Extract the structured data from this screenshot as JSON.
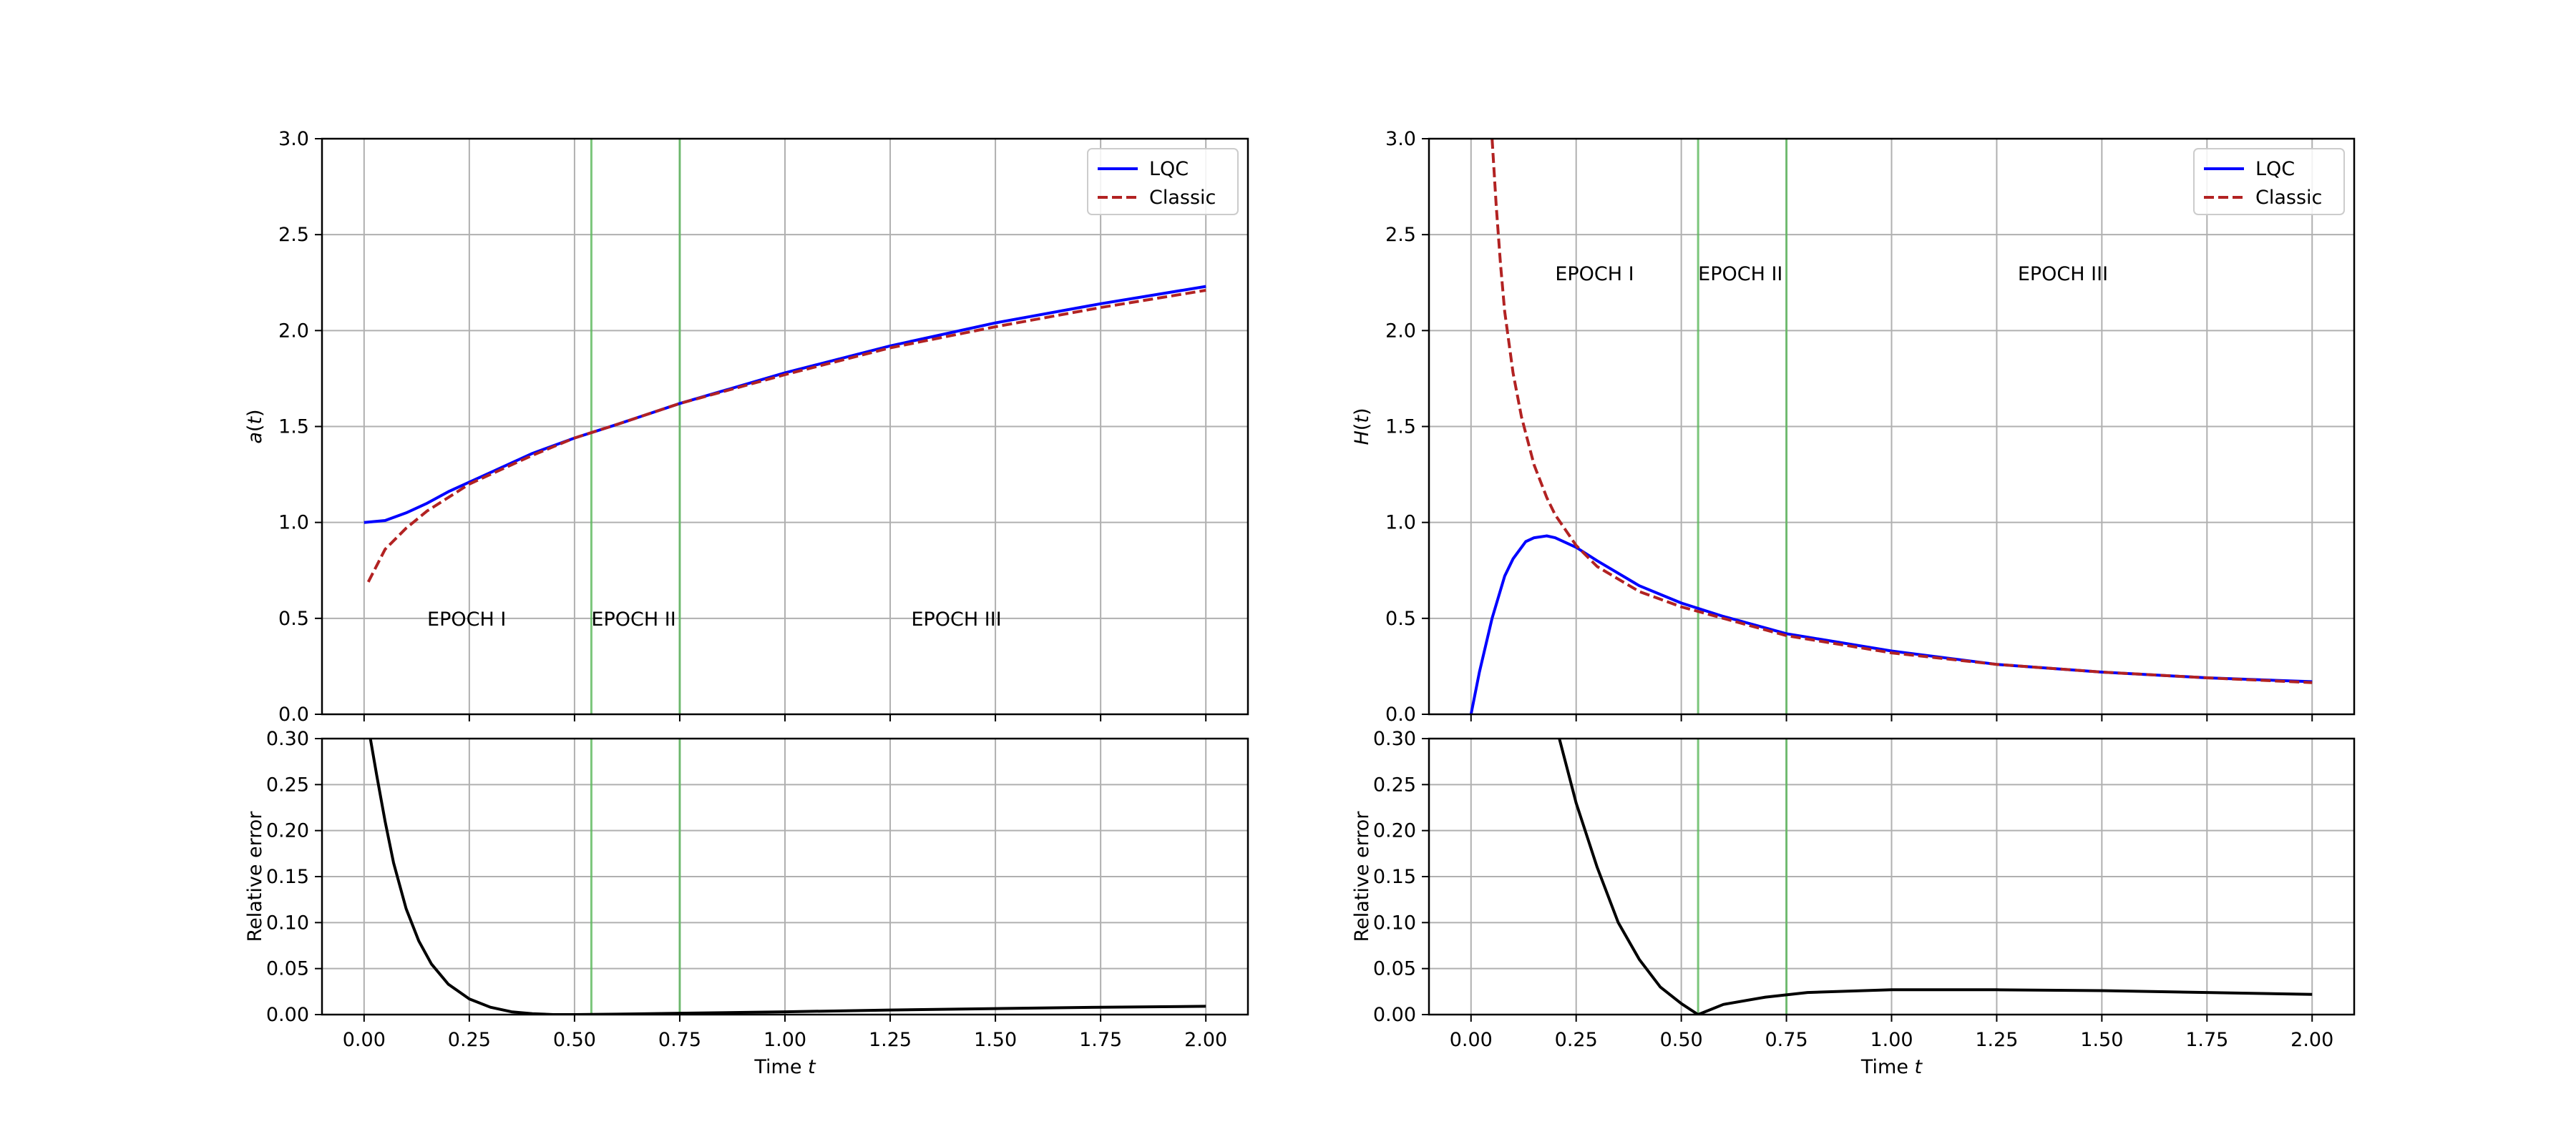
{
  "chart_data": [
    {
      "type": "line",
      "panel": "top-left",
      "ylabel_html": "<tspan font-style='italic'>a</tspan>(<tspan font-style='italic'>t</tspan>)",
      "ylabel": "a(t)",
      "xlim": [
        -0.1,
        2.1
      ],
      "ylim": [
        0,
        3.0
      ],
      "yticks": [
        "0.0",
        "0.5",
        "1.0",
        "1.5",
        "2.0",
        "2.5",
        "3.0"
      ],
      "grid": true,
      "legend": "top-right",
      "vlines": [
        0.54,
        0.75
      ],
      "annotations": [
        {
          "text": "EPOCH I",
          "x": 0.15,
          "y": 0.5
        },
        {
          "text": "EPOCH II",
          "x": 0.54,
          "y": 0.5
        },
        {
          "text": "EPOCH III",
          "x": 1.3,
          "y": 0.5
        }
      ],
      "series": [
        {
          "name": "LQC",
          "style": "solid",
          "color": "#0000ff",
          "x": [
            0,
            0.05,
            0.1,
            0.15,
            0.2,
            0.25,
            0.3,
            0.4,
            0.5,
            0.6,
            0.75,
            1.0,
            1.25,
            1.5,
            1.75,
            2.0
          ],
          "y": [
            1.0,
            1.01,
            1.05,
            1.1,
            1.16,
            1.21,
            1.26,
            1.36,
            1.44,
            1.51,
            1.62,
            1.78,
            1.92,
            2.04,
            2.14,
            2.23
          ]
        },
        {
          "name": "Classic",
          "style": "dashed",
          "color": "#b22222",
          "x": [
            0.01,
            0.05,
            0.1,
            0.15,
            0.2,
            0.25,
            0.3,
            0.4,
            0.5,
            0.6,
            0.75,
            1.0,
            1.25,
            1.5,
            1.75,
            2.0
          ],
          "y": [
            0.69,
            0.86,
            0.97,
            1.06,
            1.13,
            1.2,
            1.25,
            1.35,
            1.44,
            1.51,
            1.62,
            1.77,
            1.91,
            2.02,
            2.12,
            2.21
          ]
        }
      ]
    },
    {
      "type": "line",
      "panel": "top-right",
      "ylabel_html": "<tspan font-style='italic'>H</tspan>(<tspan font-style='italic'>t</tspan>)",
      "ylabel": "H(t)",
      "xlim": [
        -0.1,
        2.1
      ],
      "ylim": [
        0,
        3.0
      ],
      "yticks": [
        "0.0",
        "0.5",
        "1.0",
        "1.5",
        "2.0",
        "2.5",
        "3.0"
      ],
      "grid": true,
      "legend": "top-right",
      "vlines": [
        0.54,
        0.75
      ],
      "annotations": [
        {
          "text": "EPOCH I",
          "x": 0.2,
          "y": 2.3
        },
        {
          "text": "EPOCH II",
          "x": 0.54,
          "y": 2.3
        },
        {
          "text": "EPOCH III",
          "x": 1.3,
          "y": 2.3
        }
      ],
      "series": [
        {
          "name": "LQC",
          "style": "solid",
          "color": "#0000ff",
          "x": [
            0,
            0.02,
            0.05,
            0.08,
            0.1,
            0.13,
            0.15,
            0.18,
            0.2,
            0.25,
            0.3,
            0.4,
            0.5,
            0.6,
            0.75,
            1.0,
            1.25,
            1.5,
            1.75,
            2.0
          ],
          "y": [
            0,
            0.22,
            0.5,
            0.72,
            0.81,
            0.9,
            0.92,
            0.93,
            0.92,
            0.87,
            0.8,
            0.67,
            0.58,
            0.51,
            0.42,
            0.33,
            0.26,
            0.22,
            0.19,
            0.17
          ]
        },
        {
          "name": "Classic",
          "style": "dashed",
          "color": "#b22222",
          "x": [
            0.05,
            0.06,
            0.07,
            0.08,
            0.1,
            0.12,
            0.15,
            0.18,
            0.2,
            0.25,
            0.3,
            0.4,
            0.5,
            0.6,
            0.75,
            1.0,
            1.25,
            1.5,
            1.75,
            2.0
          ],
          "y": [
            3.0,
            2.65,
            2.35,
            2.1,
            1.78,
            1.55,
            1.3,
            1.13,
            1.04,
            0.88,
            0.77,
            0.64,
            0.56,
            0.5,
            0.41,
            0.32,
            0.26,
            0.22,
            0.19,
            0.165
          ]
        }
      ]
    },
    {
      "type": "line",
      "panel": "bottom-left",
      "ylabel": "Relative error",
      "xlabel_html": "Time <tspan font-style='italic'>t</tspan>",
      "xlabel": "Time t",
      "xlim": [
        -0.1,
        2.1
      ],
      "ylim": [
        0,
        0.3
      ],
      "xticks": [
        "0.00",
        "0.25",
        "0.50",
        "0.75",
        "1.00",
        "1.25",
        "1.50",
        "1.75",
        "2.00"
      ],
      "yticks": [
        "0.00",
        "0.05",
        "0.10",
        "0.15",
        "0.20",
        "0.25",
        "0.30"
      ],
      "grid": true,
      "vlines": [
        0.54,
        0.75
      ],
      "series": [
        {
          "name": "",
          "style": "solid",
          "color": "#000000",
          "x": [
            0.015,
            0.03,
            0.05,
            0.07,
            0.1,
            0.13,
            0.16,
            0.2,
            0.25,
            0.3,
            0.35,
            0.4,
            0.45,
            0.5,
            0.6,
            0.75,
            1.0,
            1.25,
            1.5,
            1.75,
            2.0
          ],
          "y": [
            0.3,
            0.26,
            0.21,
            0.165,
            0.115,
            0.08,
            0.055,
            0.033,
            0.017,
            0.008,
            0.003,
            0.001,
            0.0,
            0.0,
            0.0005,
            0.0015,
            0.003,
            0.005,
            0.0065,
            0.008,
            0.009
          ]
        }
      ]
    },
    {
      "type": "line",
      "panel": "bottom-right",
      "ylabel": "Relative error",
      "xlabel_html": "Time <tspan font-style='italic'>t</tspan>",
      "xlabel": "Time t",
      "xlim": [
        -0.1,
        2.1
      ],
      "ylim": [
        0,
        0.3
      ],
      "xticks": [
        "0.00",
        "0.25",
        "0.50",
        "0.75",
        "1.00",
        "1.25",
        "1.50",
        "1.75",
        "2.00"
      ],
      "yticks": [
        "0.00",
        "0.05",
        "0.10",
        "0.15",
        "0.20",
        "0.25",
        "0.30"
      ],
      "grid": true,
      "vlines": [
        0.54,
        0.75
      ],
      "series": [
        {
          "name": "",
          "style": "solid",
          "color": "#000000",
          "x": [
            0.21,
            0.25,
            0.3,
            0.35,
            0.4,
            0.45,
            0.5,
            0.54,
            0.6,
            0.7,
            0.8,
            1.0,
            1.25,
            1.5,
            1.75,
            2.0
          ],
          "y": [
            0.3,
            0.23,
            0.16,
            0.1,
            0.06,
            0.03,
            0.012,
            0.0,
            0.011,
            0.019,
            0.024,
            0.027,
            0.027,
            0.026,
            0.024,
            0.022
          ]
        }
      ]
    }
  ]
}
